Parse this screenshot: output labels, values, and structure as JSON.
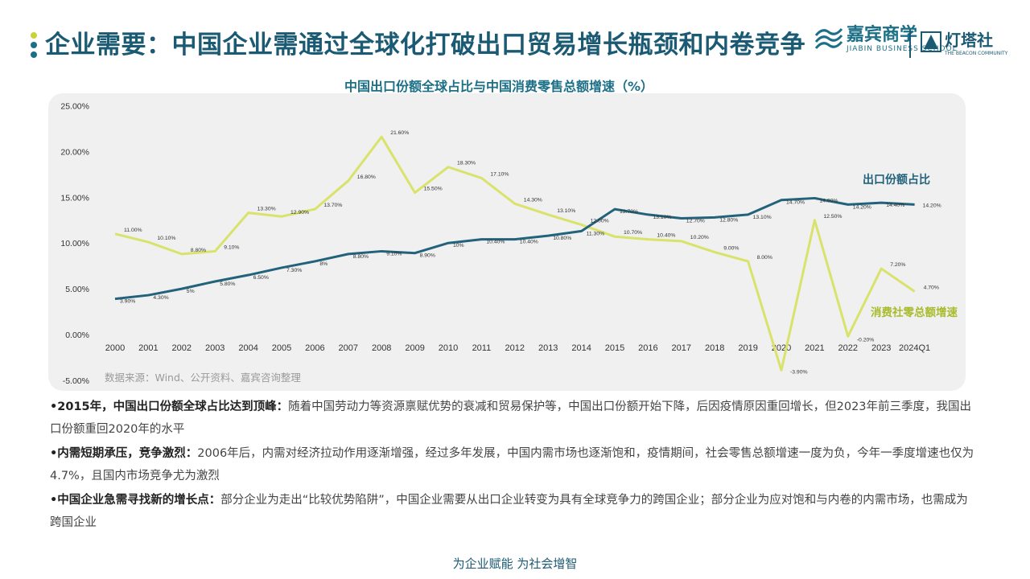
{
  "header": {
    "title": "企业需要：中国企业需通过全球化打破出口贸易增长瓶颈和内卷竞争",
    "logo1_cn": "嘉宾商学",
    "logo1_en": "JIABIN BUSINESS SCHOOL",
    "logo2_cn": "灯塔社",
    "logo2_en": "THE BEACON COMMUNITY",
    "dot_colors": [
      "#c8d33a",
      "#1b6f86",
      "#1b6f86"
    ]
  },
  "chart_data": {
    "type": "line",
    "title": "中国出口份额全球占比与中国消费零售总额增速（%）",
    "categories": [
      "2000",
      "2001",
      "2002",
      "2003",
      "2004",
      "2005",
      "2006",
      "2007",
      "2008",
      "2009",
      "2010",
      "2011",
      "2012",
      "2013",
      "2014",
      "2015",
      "2016",
      "2017",
      "2018",
      "2019",
      "2020",
      "2021",
      "2022",
      "2023",
      "2024Q1"
    ],
    "ylim": [
      -5,
      25
    ],
    "yticks": [
      "-5.00%",
      "0.00%",
      "5.00%",
      "10.00%",
      "15.00%",
      "20.00%",
      "25.00%"
    ],
    "source": "数据来源：Wind、公开资料、嘉宾咨询整理",
    "series": [
      {
        "name": "出口份额占比",
        "color": "#22627a",
        "values": [
          3.9,
          4.3,
          5,
          5.8,
          6.5,
          7.3,
          8,
          8.8,
          9.1,
          8.9,
          10,
          10.4,
          10.4,
          10.8,
          11.3,
          13.7,
          13.1,
          12.7,
          12.8,
          13.1,
          14.7,
          14.9,
          14.2,
          14.4,
          14.2
        ],
        "labels": [
          "3.90%",
          "4.30%",
          "5%",
          "5.80%",
          "6.50%",
          "7.30%",
          "8%",
          "8.80%",
          "9.10%",
          "8.90%",
          "10%",
          "10.40%",
          "10.40%",
          "10.80%",
          "11.30%",
          "13.70%",
          "13.10%",
          "12.70%",
          "12.80%",
          "13.10%",
          "14.70%",
          "14.90%",
          "14.20%",
          "14.40%",
          "14.20%"
        ]
      },
      {
        "name": "消费社零总额增速",
        "color": "#d9e26a",
        "label_color": "#a8bb2a",
        "values": [
          11,
          10.1,
          8.8,
          9.1,
          13.3,
          12.9,
          13.7,
          16.8,
          21.6,
          15.5,
          18.3,
          17.1,
          14.3,
          13.1,
          12,
          10.7,
          10.4,
          10.2,
          9,
          8,
          -3.9,
          12.5,
          -0.2,
          7.2,
          4.7
        ],
        "labels": [
          "11.00%",
          "10.10%",
          "8.80%",
          "9.10%",
          "13.30%",
          "12.90%",
          "13.70%",
          "16.80%",
          "21.60%",
          "15.50%",
          "18.30%",
          "17.10%",
          "14.30%",
          "13.10%",
          "12.00%",
          "10.70%",
          "10.40%",
          "10.20%",
          "9.00%",
          "8.00%",
          "-3.90%",
          "12.50%",
          "-0.20%",
          "7.20%",
          "4.70%"
        ]
      }
    ]
  },
  "bullets": [
    {
      "head": "•2015年，中国出口份额全球占比达到顶峰：",
      "body": "随着中国劳动力等资源禀赋优势的衰减和贸易保护等，中国出口份额开始下降，后因疫情原因重回增长，但2023年前三季度，我国出口份额重回2020年的水平"
    },
    {
      "head": "•内需短期承压，竞争激烈：",
      "body": "2006年后，内需对经济拉动作用逐渐增强，经过多年发展，中国内需市场也逐渐饱和，疫情期间，社会零售总额增速一度为负，今年一季度增速也仅为4.7%，且国内市场竞争尤为激烈"
    },
    {
      "head": "•中国企业急需寻找新的增长点：",
      "body": "部分企业为走出“比较优势陷阱”，中国企业需要从出口企业转变为具有全球竞争力的跨国企业；部分企业为应对饱和与内卷的内需市场，也需成为跨国企业"
    }
  ],
  "footer": "为企业赋能  为社会增智"
}
